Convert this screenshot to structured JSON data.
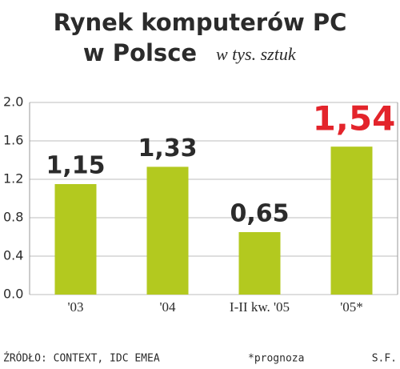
{
  "chart_data": {
    "type": "bar",
    "title_lines": [
      "Rynek komputerów PC",
      "w Polsce"
    ],
    "subtitle": "w tys. sztuk",
    "categories": [
      "'03",
      "'04",
      "I-II kw. '05",
      "'05*"
    ],
    "values": [
      1.15,
      1.33,
      0.65,
      1.54
    ],
    "value_labels": [
      "1,15",
      "1,33",
      "0,65",
      "1,54"
    ],
    "value_label_colors": [
      "#2b2b2b",
      "#2b2b2b",
      "#2b2b2b",
      "#e3242b"
    ],
    "color": "#b3c91f",
    "ylim": [
      0,
      2
    ],
    "yticks": [
      {
        "value": 0,
        "label": "0.0"
      },
      0.4,
      0.8,
      1.2,
      1.6,
      {
        "value": 2,
        "label": "2.0"
      }
    ],
    "grid": true,
    "source": "ŹRÓDŁO: CONTEXT, IDC EMEA",
    "note": "*prognoza",
    "credit": "S.F."
  }
}
